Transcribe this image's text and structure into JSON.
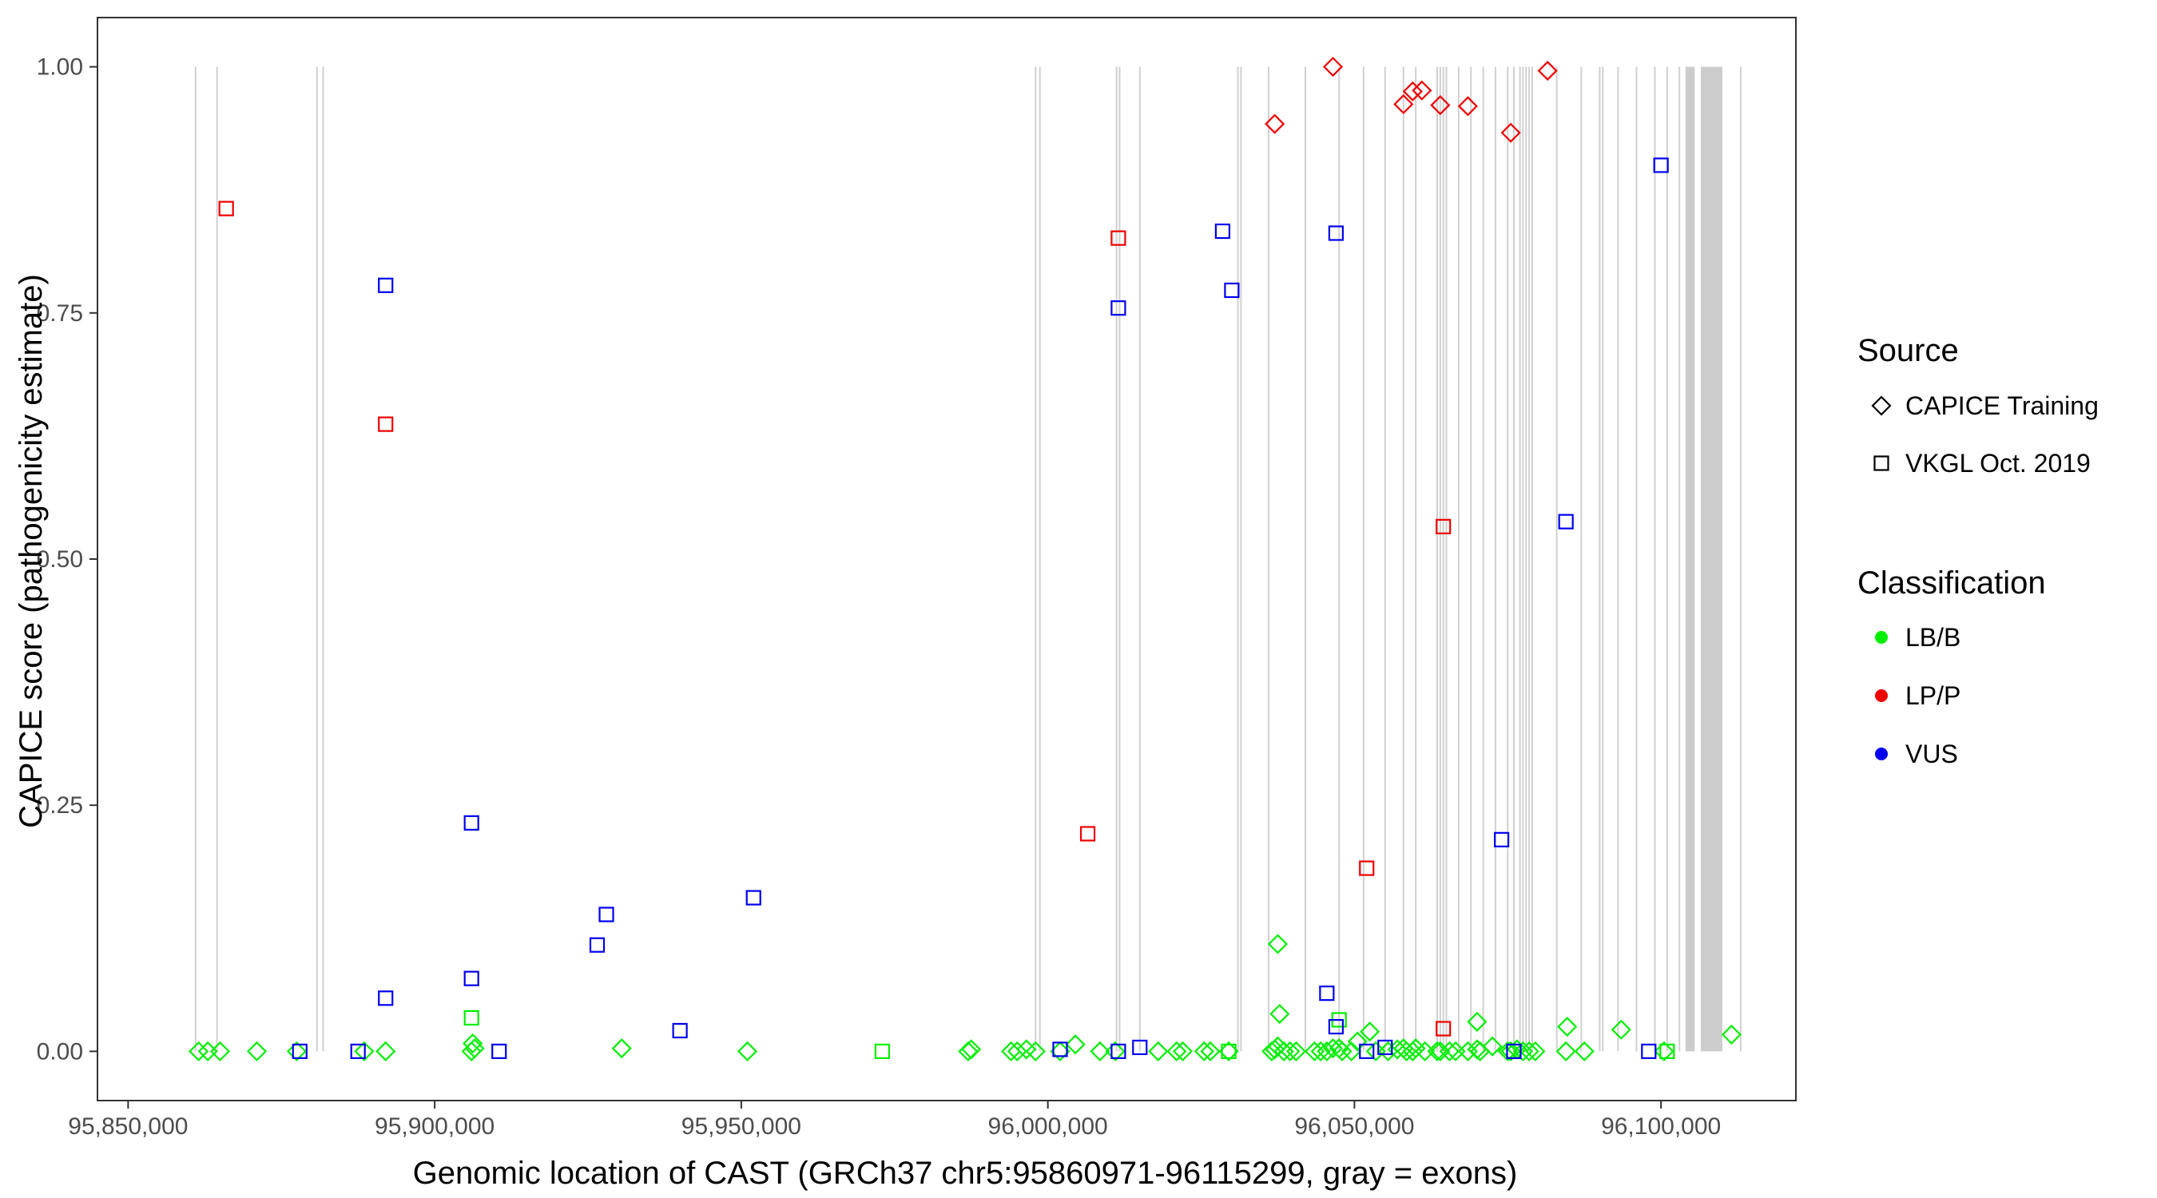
{
  "chart_data": {
    "type": "scatter",
    "title": "",
    "xlabel": "Genomic location of CAST (GRCh37 chr5:95860971-96115299, gray = exons)",
    "ylabel": "CAPICE score (pathogenicity estimate)",
    "xlim": [
      95845000,
      96122000
    ],
    "ylim": [
      -0.05,
      1.05
    ],
    "x_ticks": [
      95850000,
      95900000,
      95950000,
      96000000,
      96050000,
      96100000
    ],
    "x_tick_labels": [
      "95,850,000",
      "95,900,000",
      "95,950,000",
      "96,000,000",
      "96,050,000",
      "96,100,000"
    ],
    "y_ticks": [
      0,
      0.25,
      0.5,
      0.75,
      1.0
    ],
    "y_tick_labels": [
      "0.00",
      "0.25",
      "0.50",
      "0.75",
      "1.00"
    ],
    "grid": false,
    "exon_lines": [
      95861000,
      95864500,
      95880800,
      95881800,
      95998000,
      95998700,
      96011200,
      96011700,
      96015000,
      96031000,
      96031500,
      96036000,
      96042000,
      96047500,
      96051500,
      96055000,
      96058000,
      96060000,
      96063500,
      96064000,
      96064500,
      96065000,
      96067000,
      96069000,
      96071000,
      96073000,
      96075000,
      96076000,
      96077000,
      96077500,
      96078000,
      96078500,
      96079000,
      96083000,
      96087000,
      96090000,
      96090500,
      96093000,
      96096000,
      96099000,
      96101000,
      96103000,
      96113000
    ],
    "exon_bands": [
      [
        96104000,
        96105500
      ],
      [
        96106500,
        96110000
      ]
    ],
    "legend": {
      "position": "right",
      "source_title": "Source",
      "source_items": [
        {
          "label": "CAPICE Training",
          "shape": "diamond"
        },
        {
          "label": "VKGL Oct. 2019",
          "shape": "square"
        }
      ],
      "class_title": "Classification",
      "class_items": [
        {
          "label": "LB/B",
          "color": "#00ee00"
        },
        {
          "label": "LP/P",
          "color": "#ee0000"
        },
        {
          "label": "VUS",
          "color": "#0000ee"
        }
      ]
    },
    "colors": {
      "LB/B": "#00ee00",
      "LP/P": "#ee0000",
      "VUS": "#0000ee"
    },
    "series": [
      {
        "source": "CAPICE Training",
        "classification": "LB/B",
        "points": [
          [
            95861500,
            0
          ],
          [
            95863000,
            0
          ],
          [
            95865000,
            0
          ],
          [
            95871000,
            0
          ],
          [
            95877500,
            0
          ],
          [
            95888500,
            0
          ],
          [
            95892000,
            0
          ],
          [
            95906000,
            0
          ],
          [
            95906200,
            0.008
          ],
          [
            95906500,
            0.003
          ],
          [
            95930500,
            0.003
          ],
          [
            95951000,
            0
          ],
          [
            95987000,
            0
          ],
          [
            95987500,
            0.002
          ],
          [
            95994000,
            0
          ],
          [
            95995000,
            0
          ],
          [
            95996500,
            0.002
          ],
          [
            95998000,
            0
          ],
          [
            96002000,
            0
          ],
          [
            96004500,
            0.007
          ],
          [
            96008500,
            0
          ],
          [
            96011000,
            0
          ],
          [
            96018000,
            0
          ],
          [
            96021000,
            0
          ],
          [
            96022000,
            0
          ],
          [
            96025500,
            0
          ],
          [
            96026500,
            0
          ],
          [
            96029500,
            0
          ],
          [
            96036500,
            0
          ],
          [
            96037000,
            0.002
          ],
          [
            96037500,
            0.005
          ],
          [
            96037800,
            0.038
          ],
          [
            96037500,
            0.109
          ],
          [
            96038500,
            0
          ],
          [
            96039500,
            0
          ],
          [
            96040500,
            0
          ],
          [
            96043500,
            0
          ],
          [
            96044500,
            0
          ],
          [
            96045500,
            0
          ],
          [
            96046500,
            0.003
          ],
          [
            96047500,
            0.003
          ],
          [
            96048000,
            0
          ],
          [
            96049500,
            0
          ],
          [
            96050500,
            0.01
          ],
          [
            96052500,
            0.02
          ],
          [
            96053500,
            0
          ],
          [
            96055500,
            0
          ],
          [
            96057000,
            0.002
          ],
          [
            96058000,
            0.003
          ],
          [
            96058500,
            0
          ],
          [
            96059500,
            0
          ],
          [
            96060000,
            0.003
          ],
          [
            96061500,
            0
          ],
          [
            96063500,
            0
          ],
          [
            96064000,
            0
          ],
          [
            96065500,
            0
          ],
          [
            96066500,
            0
          ],
          [
            96068500,
            0
          ],
          [
            96070000,
            0.002
          ],
          [
            96070500,
            0
          ],
          [
            96070000,
            0.03
          ],
          [
            96072500,
            0.005
          ],
          [
            96075000,
            0
          ],
          [
            96075500,
            0
          ],
          [
            96076500,
            0.002
          ],
          [
            96077500,
            0
          ],
          [
            96078500,
            0
          ],
          [
            96079500,
            0
          ],
          [
            96084500,
            0
          ],
          [
            96084700,
            0.025
          ],
          [
            96087500,
            0
          ],
          [
            96093500,
            0.022
          ],
          [
            96100500,
            0
          ],
          [
            96111500,
            0.017
          ]
        ]
      },
      {
        "source": "CAPICE Training",
        "classification": "LP/P",
        "points": [
          [
            96037000,
            0.942
          ],
          [
            96046500,
            1.0
          ],
          [
            96058000,
            0.962
          ],
          [
            96059500,
            0.975
          ],
          [
            96061000,
            0.976
          ],
          [
            96064000,
            0.961
          ],
          [
            96068500,
            0.96
          ],
          [
            96075500,
            0.933
          ],
          [
            96081500,
            0.996
          ]
        ]
      },
      {
        "source": "VKGL Oct. 2019",
        "classification": "LB/B",
        "points": [
          [
            95906000,
            0.034
          ],
          [
            95973000,
            0
          ],
          [
            96029500,
            0
          ],
          [
            96047500,
            0.032
          ],
          [
            96101000,
            0
          ]
        ]
      },
      {
        "source": "VKGL Oct. 2019",
        "classification": "LP/P",
        "points": [
          [
            95866000,
            0.856
          ],
          [
            95892000,
            0.637
          ],
          [
            96011500,
            0.826
          ],
          [
            96006500,
            0.221
          ],
          [
            96052000,
            0.186
          ],
          [
            96064500,
            0.533
          ],
          [
            96064500,
            0.023
          ]
        ]
      },
      {
        "source": "VKGL Oct. 2019",
        "classification": "VUS",
        "points": [
          [
            95878000,
            0
          ],
          [
            95887500,
            0
          ],
          [
            95892000,
            0.778
          ],
          [
            95892000,
            0.054
          ],
          [
            95906000,
            0.232
          ],
          [
            95906000,
            0.074
          ],
          [
            95910500,
            0
          ],
          [
            95926500,
            0.108
          ],
          [
            95928000,
            0.139
          ],
          [
            95940000,
            0.021
          ],
          [
            95952000,
            0.156
          ],
          [
            96002000,
            0.002
          ],
          [
            96011500,
            0.755
          ],
          [
            96011500,
            0
          ],
          [
            96015000,
            0.004
          ],
          [
            96028500,
            0.833
          ],
          [
            96030000,
            0.773
          ],
          [
            96045500,
            0.059
          ],
          [
            96047000,
            0.831
          ],
          [
            96047000,
            0.025
          ],
          [
            96052000,
            0
          ],
          [
            96055000,
            0.004
          ],
          [
            96074000,
            0.215
          ],
          [
            96076000,
            0
          ],
          [
            96084500,
            0.538
          ],
          [
            96098000,
            0
          ],
          [
            96100000,
            0.9
          ]
        ]
      }
    ]
  }
}
